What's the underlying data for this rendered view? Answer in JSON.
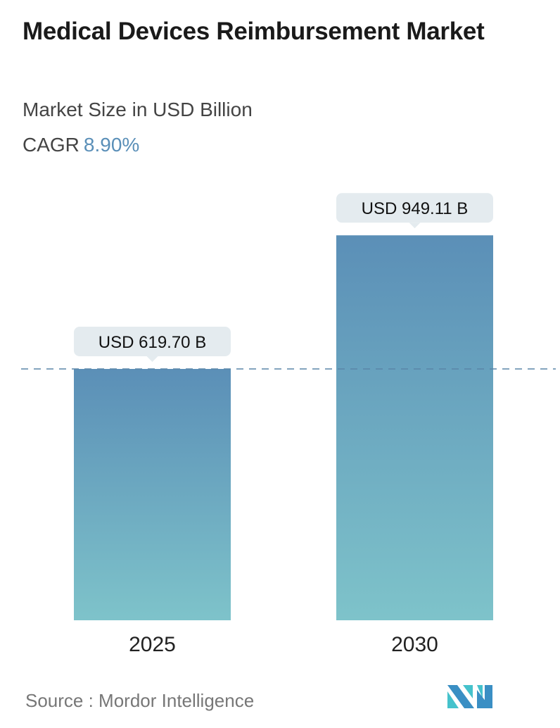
{
  "title": "Medical Devices Reimbursement Market",
  "subtitle": "Market Size in USD Billion",
  "cagr_label": "CAGR",
  "cagr_value": "8.90%",
  "source": "Source :  Mordor Intelligence",
  "colors": {
    "bar_top": "#5b8fb7",
    "bar_bottom": "#7ec3ca",
    "cagr": "#5a8fb8",
    "reference_line": "#5a85a8",
    "label_box": "#e4ebef"
  },
  "chart_data": {
    "type": "bar",
    "categories": [
      "2025",
      "2030"
    ],
    "values": [
      619.7,
      949.11
    ],
    "data_labels": [
      "USD 619.70 B",
      "USD 949.11 B"
    ],
    "title": "Medical Devices Reimbursement Market",
    "ylabel": "Market Size in USD Billion",
    "grid": false,
    "reference_line": {
      "style": "dashed",
      "value": 619.7
    }
  }
}
